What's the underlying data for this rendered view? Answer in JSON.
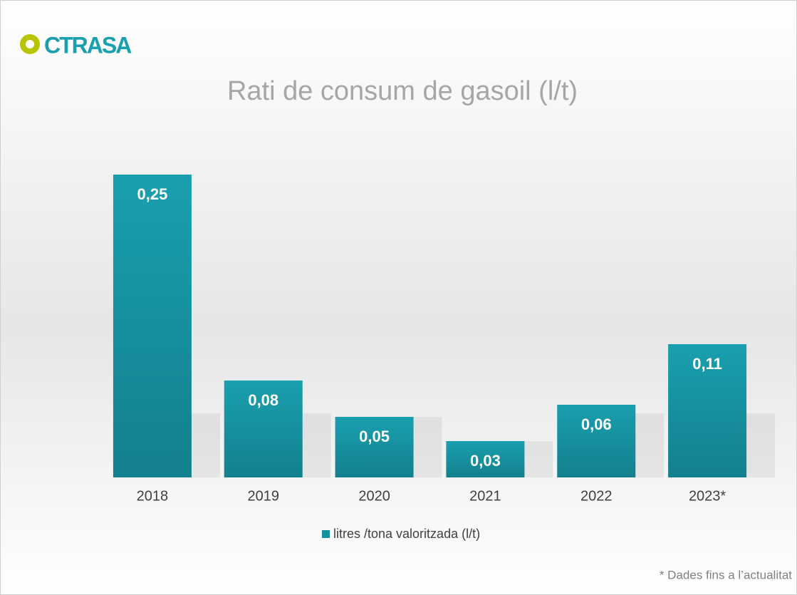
{
  "logo": "CTRASA",
  "footnote": "* Dades fins a l’actualitat",
  "chart_data": {
    "type": "bar",
    "title": "Rati de consum de gasoil (l/t)",
    "categories": [
      "2018",
      "2019",
      "2020",
      "2021",
      "2022",
      "2023*"
    ],
    "series": [
      {
        "name": "litres /tona valoritzada (l/t)",
        "color": "#17909e",
        "values": [
          0.25,
          0.08,
          0.05,
          0.03,
          0.06,
          0.11
        ],
        "value_labels": [
          "0,25",
          "0,08",
          "0,05",
          "0,03",
          "0,06",
          "0,11"
        ]
      }
    ],
    "legend": "bottom"
  }
}
